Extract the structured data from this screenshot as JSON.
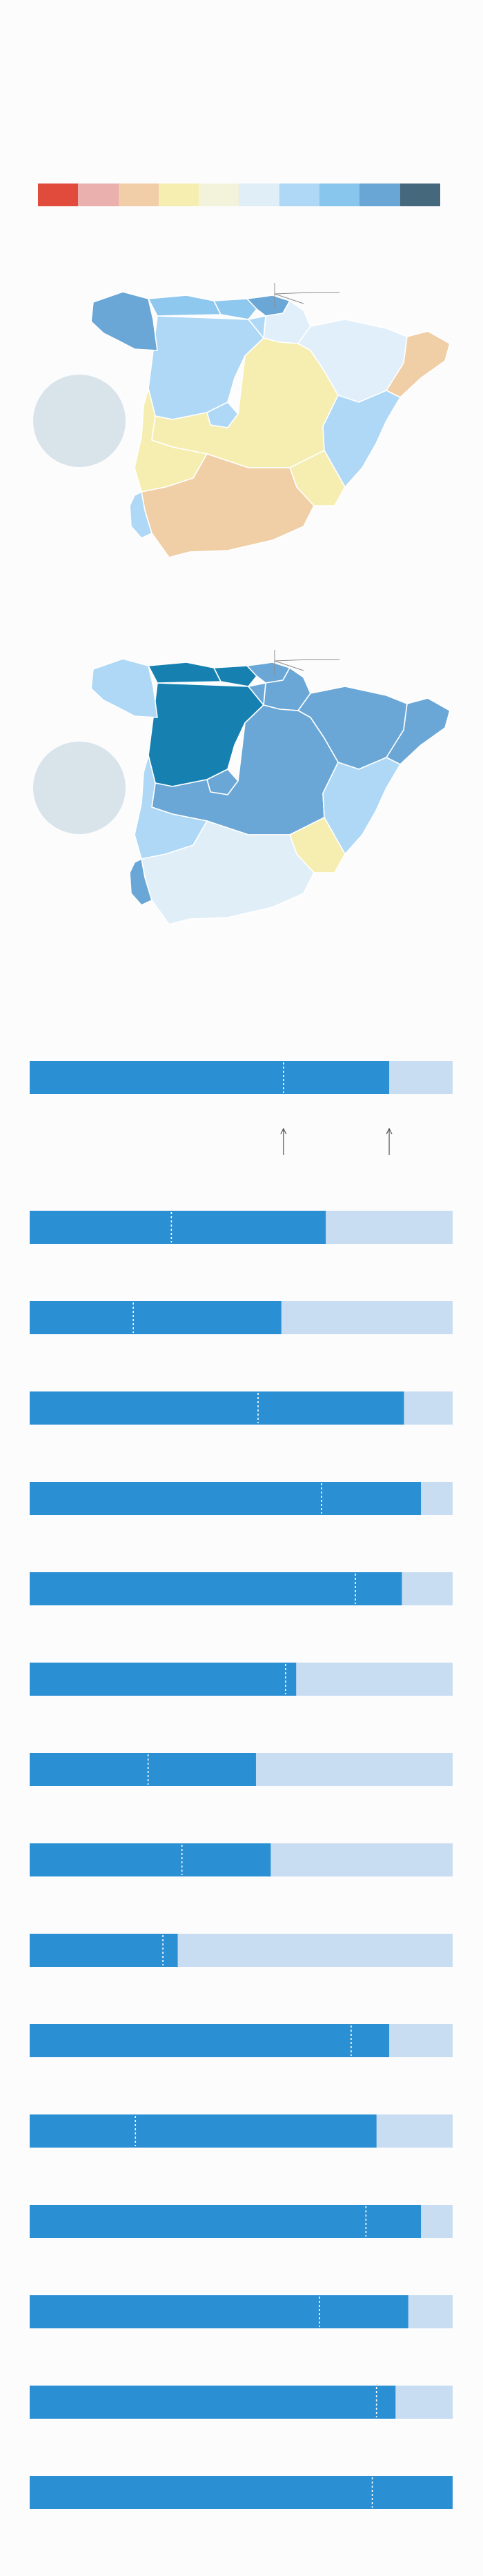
{
  "legend_scale": {
    "colors": [
      "#e04b3b",
      "#eab0ae",
      "#f1cea7",
      "#f6eeb0",
      "#f3f3dc",
      "#e0eef8",
      "#aed8f5",
      "#89c6ed",
      "#69a5d5",
      "#45687d"
    ]
  },
  "colors": {
    "bar_fill": "#2b8fd3",
    "bar_track": "#c8dcf2",
    "bubble": "#d9e4ea",
    "map_border": "#ffffff",
    "callout_line": "#8b8b8b"
  },
  "map_1": {
    "regions": {
      "galicia": "#6aa7d6",
      "asturias": "#8ec8ee",
      "cantabria": "#8ec8ee",
      "pais_vasco": "#6aa7d6",
      "navarra": "#e1effa",
      "aragon": "#e1effa",
      "cataluna": "#f0cea6",
      "castilla_y_leon": "#aed8f5",
      "la_rioja": "#aed8f5",
      "madrid": "#aed8f5",
      "castilla_la_mancha": "#f6eeb0",
      "valencia": "#aed8f5",
      "extremadura": "#f6eeb0",
      "andalucia": "#f0cea6",
      "murcia": "#f6eeb0",
      "huelva": "#aed8f5"
    }
  },
  "map_2": {
    "regions": {
      "galicia": "#aed8f5",
      "asturias": "#1681b1",
      "cantabria": "#1681b1",
      "pais_vasco": "#6aa7d6",
      "navarra": "#6aa7d6",
      "aragon": "#6aa7d6",
      "cataluna": "#6aa7d6",
      "castilla_y_leon": "#1681b1",
      "la_rioja": "#6aa7d6",
      "madrid": "#6aa7d6",
      "castilla_la_mancha": "#6aa7d6",
      "valencia": "#aed8f5",
      "extremadura": "#aed8f5",
      "andalucia": "#e0eef8",
      "murcia": "#f6eeb0",
      "huelva": "#6aa7d6"
    }
  },
  "chart_data": [
    {
      "type": "bar",
      "orientation": "horizontal",
      "stacked_progress": true,
      "xlim": [
        0,
        100
      ],
      "values": [
        85
      ],
      "markers": [
        60
      ],
      "arrow_positions": [
        60,
        85
      ]
    },
    {
      "type": "bar",
      "orientation": "horizontal",
      "stacked_progress": true,
      "xlim": [
        0,
        100
      ],
      "values": [
        70,
        59.5,
        88.5,
        92.5,
        88,
        63,
        53.5,
        57,
        35,
        85,
        82,
        92.5,
        89.5,
        86.5,
        100
      ],
      "markers": [
        33.5,
        24.5,
        54,
        69,
        77,
        60.5,
        28,
        36,
        31.5,
        76,
        25,
        79.5,
        68.5,
        82,
        81
      ]
    }
  ]
}
